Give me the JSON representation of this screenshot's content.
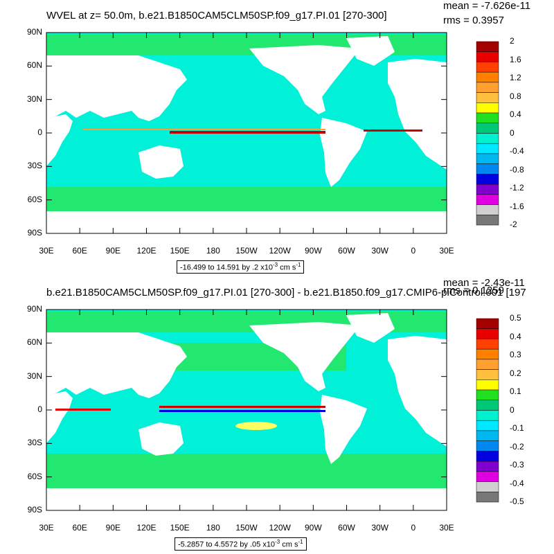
{
  "panels": [
    {
      "title": "WVEL at z=  50.0m, b.e21.B1850CAM5CLM50SP.f09_g17.PI.01 [270-300]",
      "mean_label": "mean = -7.626e-11",
      "rms_label": "rms = 0.3957",
      "range_prefix": "-16.499 to 14.591 by .2 x10",
      "range_exp": "-3",
      "range_units": " cm s",
      "range_units_exp": "-1",
      "colorbar_labels": [
        "2",
        "1.6",
        "1.2",
        "0.8",
        "0.4",
        "0",
        "-0.4",
        "-0.8",
        "-1.2",
        "-1.6",
        "-2"
      ]
    },
    {
      "title": "b.e21.B1850CAM5CLM50SP.f09_g17.PI.01 [270-300] - b.e21.B1850.f09_g17.CMIP6-piControl.001 [197",
      "mean_label": "mean = -2.43e-11",
      "rms_label": "rms = 0.1259",
      "range_prefix": "-5.2857 to 4.5572 by .05 x10",
      "range_exp": "-3",
      "range_units": " cm s",
      "range_units_exp": "-1",
      "colorbar_labels": [
        "0.5",
        "0.4",
        "0.3",
        "0.2",
        "0.1",
        "0",
        "-0.1",
        "-0.2",
        "-0.3",
        "-0.4",
        "-0.5"
      ]
    }
  ],
  "axes": {
    "lat_labels": [
      "90N",
      "60N",
      "30N",
      "0",
      "30S",
      "60S",
      "90S"
    ],
    "lon_labels": [
      "30E",
      "60E",
      "90E",
      "120E",
      "150E",
      "180",
      "150W",
      "120W",
      "90W",
      "60W",
      "30W",
      "0",
      "30E"
    ]
  },
  "colorbar_colors": [
    "#a50000",
    "#e60000",
    "#ff4000",
    "#ff8000",
    "#ffa030",
    "#ffc040",
    "#ffff00",
    "#20e020",
    "#00c878",
    "#00f0d0",
    "#00e8ff",
    "#00b8f0",
    "#0088f0",
    "#0000e0",
    "#8000d0",
    "#e000e0",
    "#d0d0d0",
    "#787878"
  ],
  "ocean_color": "#00e8d8"
}
